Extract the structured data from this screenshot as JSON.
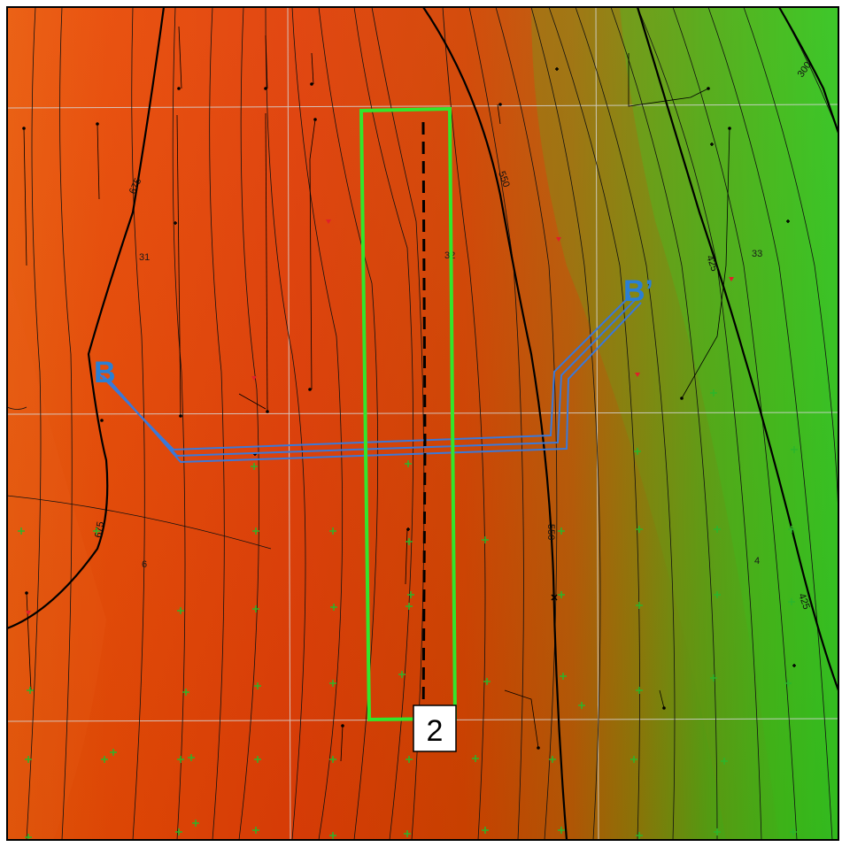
{
  "map": {
    "colors": {
      "low": "#e03e06",
      "mid": "#c94a00",
      "high": "#12e02e",
      "contour": "#111111",
      "grid": "#d9d9d9",
      "highlight_box": "#33e62b",
      "section_line": "#3b78d8",
      "lateral": "#000000",
      "well_marker_green": "#2bb52b",
      "well_marker_red": "#e0202a"
    },
    "section_labels": [
      "31",
      "32",
      "33",
      "6",
      "4"
    ],
    "contour_labels": [
      "675",
      "550",
      "425",
      "300",
      "675",
      "550",
      "425"
    ],
    "cross_section": {
      "start": "B",
      "end": "B’"
    },
    "highlight": {
      "label": "2"
    }
  }
}
